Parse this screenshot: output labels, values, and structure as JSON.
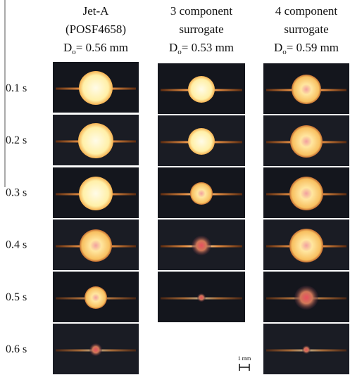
{
  "columns": [
    {
      "title_lines": [
        "Jet-A",
        "(POSF4658)"
      ],
      "diameter": {
        "symbol": "D",
        "subscript": "o",
        "text": "= 0.56 mm"
      }
    },
    {
      "title_lines": [
        "3 component",
        "surrogate"
      ],
      "diameter": {
        "symbol": "D",
        "subscript": "o",
        "text": "= 0.53 mm"
      }
    },
    {
      "title_lines": [
        "4 component",
        "surrogate"
      ],
      "diameter": {
        "symbol": "D",
        "subscript": "o",
        "text": "= 0.59 mm"
      }
    }
  ],
  "times": [
    "0.1 s",
    "0.2 s",
    "0.3 s",
    "0.4 s",
    "0.5 s",
    "0.6 s"
  ],
  "scale_bar": "1 mm"
}
